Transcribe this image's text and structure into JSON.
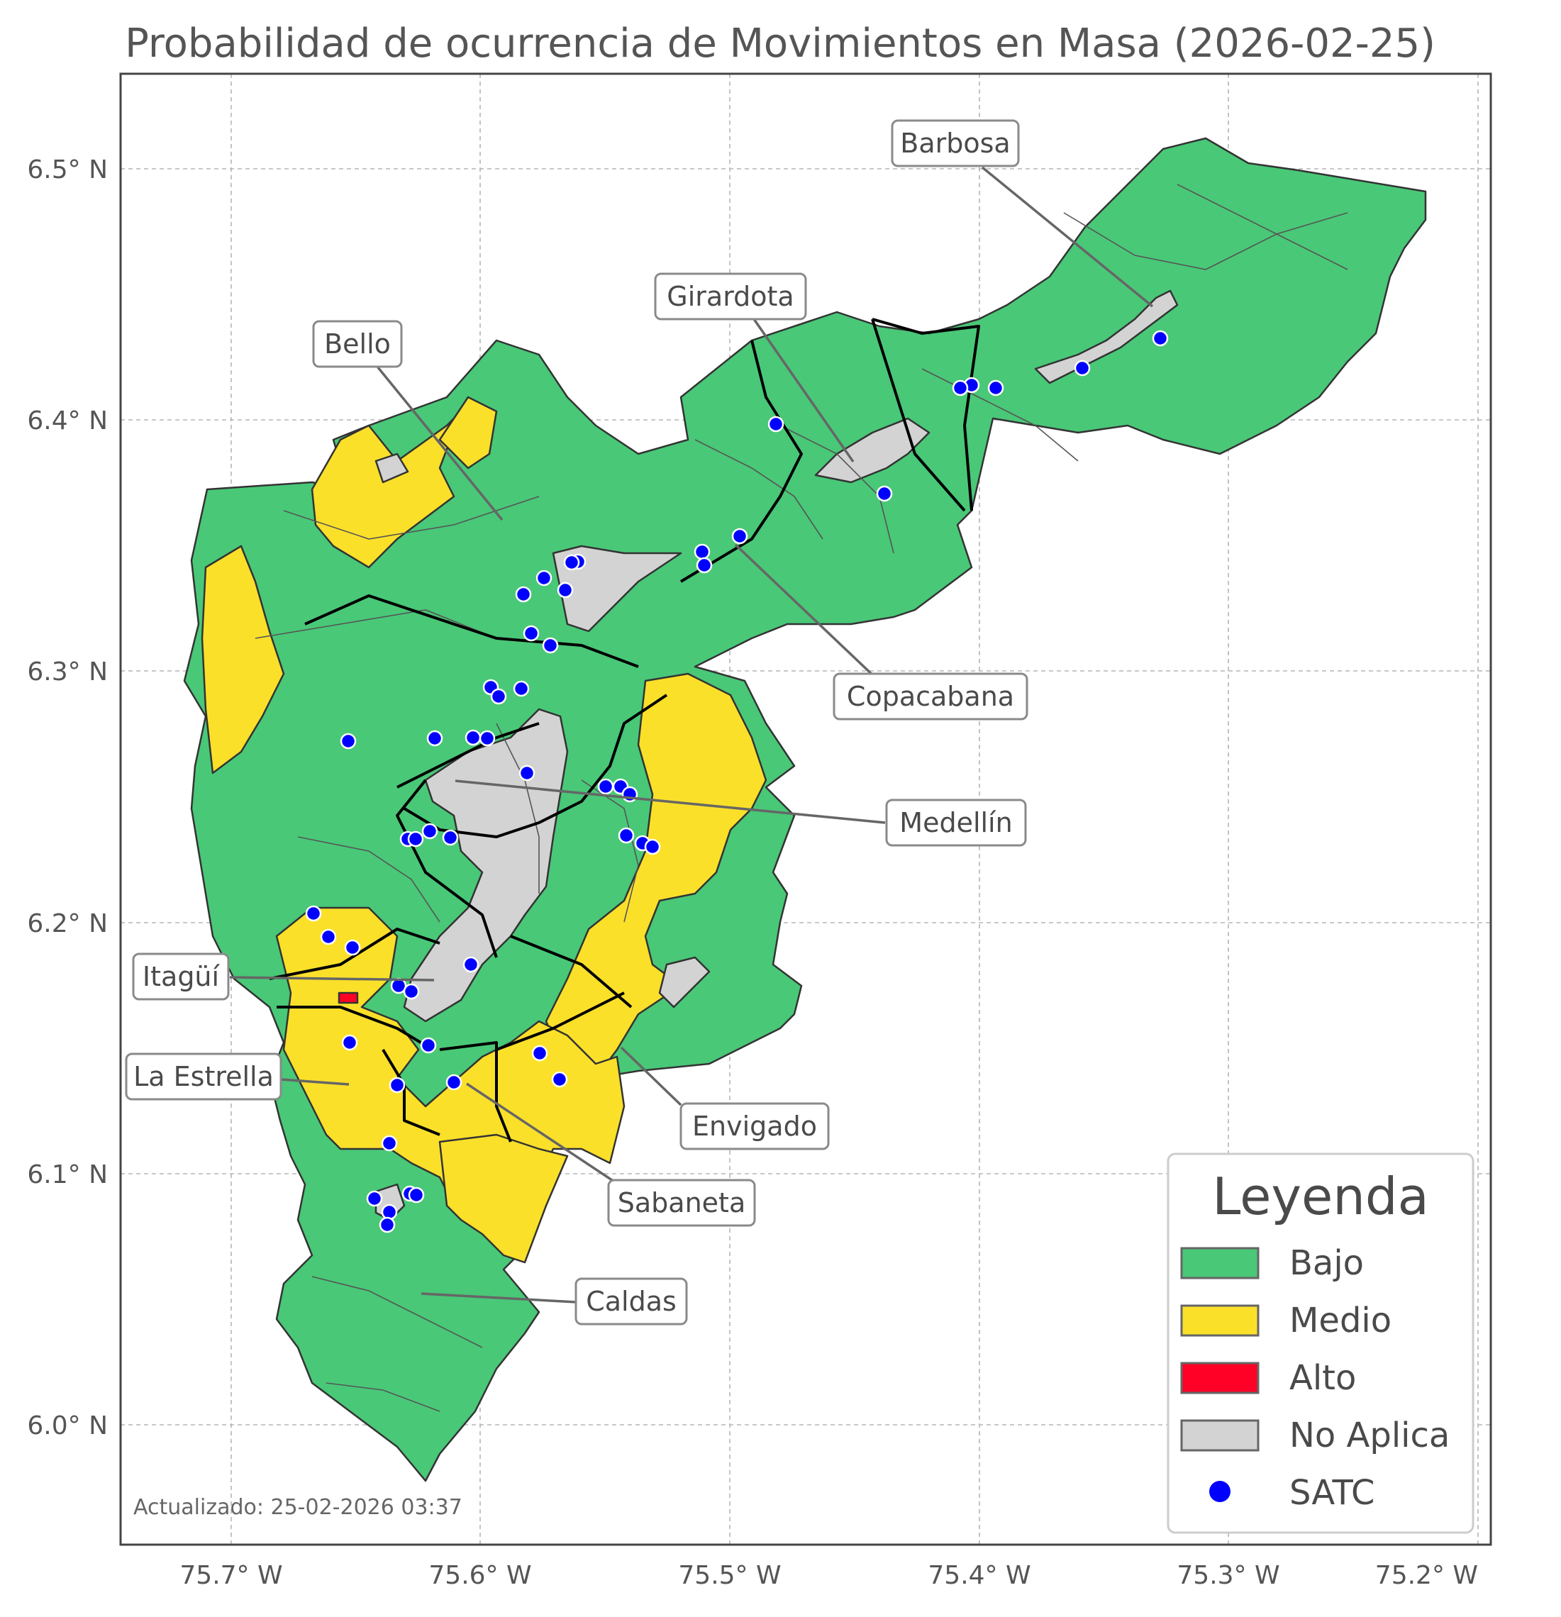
{
  "title": "Probabilidad de ocurrencia de Movimientos en Masa (2026-02-25)",
  "axes": {
    "x_ticks": [
      "75.7° W",
      "75.6° W",
      "75.5° W",
      "75.4° W",
      "75.3° W",
      "75.2° W"
    ],
    "y_ticks": [
      "6.5° N",
      "6.4° N",
      "6.3° N",
      "6.2° N",
      "6.1° N",
      "6.0° N"
    ],
    "grid": true
  },
  "colors": {
    "bajo": "#49c878",
    "medio": "#fbe02a",
    "alto": "#ff0026",
    "no_aplica": "#d3d3d3",
    "satc": "#0000ff"
  },
  "municipalities": [
    {
      "id": "barbosa",
      "label": "Barbosa"
    },
    {
      "id": "girardota",
      "label": "Girardota"
    },
    {
      "id": "bello",
      "label": "Bello"
    },
    {
      "id": "copacabana",
      "label": "Copacabana"
    },
    {
      "id": "medellin",
      "label": "Medellín"
    },
    {
      "id": "itagui",
      "label": "Itagüí"
    },
    {
      "id": "la-estrella",
      "label": "La Estrella"
    },
    {
      "id": "envigado",
      "label": "Envigado"
    },
    {
      "id": "sabaneta",
      "label": "Sabaneta"
    },
    {
      "id": "caldas",
      "label": "Caldas"
    }
  ],
  "legend": {
    "title": "Leyenda",
    "items": [
      {
        "label": "Bajo",
        "color": "#49c878"
      },
      {
        "label": "Medio",
        "color": "#fbe02a"
      },
      {
        "label": "Alto",
        "color": "#ff0026"
      },
      {
        "label": "No Aplica",
        "color": "#d3d3d3"
      },
      {
        "label": "SATC",
        "marker": "dot",
        "color": "#0000ff"
      }
    ]
  },
  "footer": "Actualizado: 25-02-2026 03:37"
}
